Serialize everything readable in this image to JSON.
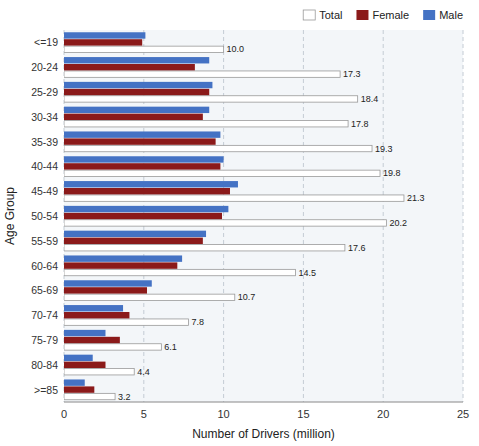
{
  "chart_data": {
    "type": "bar",
    "orientation": "horizontal",
    "x_label": "Number of Drivers (million)",
    "y_label": "Age Group",
    "categories": [
      "<=19",
      "20-24",
      "25-29",
      "30-34",
      "35-39",
      "40-44",
      "45-49",
      "50-54",
      "55-59",
      "60-64",
      "65-69",
      "70-74",
      "75-79",
      "80-84",
      ">=85"
    ],
    "series": [
      {
        "name": "Total",
        "color": "#ffffff",
        "data_labels": true,
        "values": [
          10.0,
          17.3,
          18.4,
          17.8,
          19.3,
          19.8,
          21.3,
          20.2,
          17.6,
          14.5,
          10.7,
          7.8,
          6.1,
          4.4,
          3.2
        ],
        "value_labels": [
          "10.0",
          "17.3",
          "18.4",
          "17.8",
          "19.3",
          "19.8",
          "21.3",
          "20.2",
          "17.6",
          "14.5",
          "10.7",
          "7.8",
          "6.1",
          "4.4",
          "3.2"
        ]
      },
      {
        "name": "Female",
        "color": "#8B1A1A",
        "values": [
          4.9,
          8.2,
          9.1,
          8.7,
          9.5,
          9.8,
          10.4,
          9.9,
          8.7,
          7.1,
          5.2,
          4.1,
          3.5,
          2.6,
          1.9
        ]
      },
      {
        "name": "Male",
        "color": "#4472C4",
        "values": [
          5.1,
          9.1,
          9.3,
          9.1,
          9.8,
          10.0,
          10.9,
          10.3,
          8.9,
          7.4,
          5.5,
          3.7,
          2.6,
          1.8,
          1.3
        ]
      }
    ],
    "xlim": [
      0,
      25
    ],
    "xticks": [
      0,
      5,
      10,
      15,
      20,
      25
    ],
    "grid": true,
    "legend": "upper right"
  }
}
